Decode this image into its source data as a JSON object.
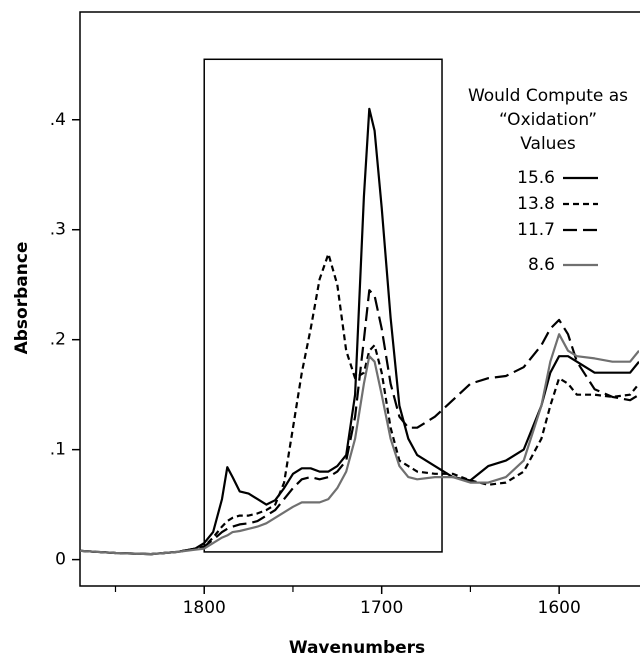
{
  "chart_data": {
    "type": "line",
    "x_label": "Wavenumbers",
    "y_label": "Absorbance",
    "xlim": [
      1870,
      1555
    ],
    "ylim": [
      -0.024,
      0.498
    ],
    "xticks": [
      1800,
      1700,
      1600
    ],
    "xminorticks": [
      1850,
      1750,
      1650
    ],
    "yticks": [
      0,
      {
        "value": 0.1,
        "label": ".1"
      },
      {
        "value": 0.2,
        "label": ".2"
      },
      {
        "value": 0.3,
        "label": ".3"
      },
      {
        "value": 0.4,
        "label": ".4"
      }
    ],
    "grid": false,
    "highlight_box": {
      "xlim": [
        1800,
        1666
      ],
      "ylim": [
        0.007,
        0.455
      ]
    },
    "legend_title": [
      "Would Compute as",
      "“Oxidation”",
      "Values"
    ],
    "legend_position": "upper right",
    "x": [
      1870,
      1850,
      1830,
      1815,
      1805,
      1800,
      1795,
      1790,
      1787,
      1784,
      1780,
      1775,
      1770,
      1765,
      1760,
      1755,
      1750,
      1745,
      1740,
      1735,
      1730,
      1725,
      1720,
      1715,
      1710,
      1707,
      1704,
      1700,
      1695,
      1690,
      1685,
      1680,
      1670,
      1660,
      1650,
      1640,
      1630,
      1620,
      1610,
      1605,
      1600,
      1595,
      1590,
      1580,
      1570,
      1560,
      1555
    ],
    "series": [
      {
        "name": "15.6",
        "color": "#000000",
        "dash": "solid",
        "values": [
          0.008,
          0.006,
          0.005,
          0.007,
          0.01,
          0.015,
          0.025,
          0.055,
          0.084,
          0.075,
          0.062,
          0.06,
          0.055,
          0.05,
          0.054,
          0.065,
          0.078,
          0.083,
          0.083,
          0.08,
          0.08,
          0.085,
          0.095,
          0.15,
          0.33,
          0.41,
          0.39,
          0.32,
          0.22,
          0.14,
          0.11,
          0.095,
          0.085,
          0.075,
          0.072,
          0.085,
          0.09,
          0.1,
          0.14,
          0.17,
          0.185,
          0.185,
          0.18,
          0.17,
          0.17,
          0.17,
          0.18
        ]
      },
      {
        "name": "13.8",
        "color": "#000000",
        "dash": "short-dash",
        "values": [
          0.008,
          0.006,
          0.005,
          0.007,
          0.01,
          0.012,
          0.02,
          0.03,
          0.035,
          0.038,
          0.04,
          0.04,
          0.042,
          0.045,
          0.05,
          0.07,
          0.12,
          0.17,
          0.21,
          0.255,
          0.278,
          0.25,
          0.19,
          0.165,
          0.17,
          0.19,
          0.195,
          0.17,
          0.12,
          0.09,
          0.085,
          0.08,
          0.078,
          0.078,
          0.072,
          0.068,
          0.07,
          0.08,
          0.11,
          0.14,
          0.165,
          0.16,
          0.15,
          0.15,
          0.148,
          0.15,
          0.16
        ]
      },
      {
        "name": "11.7",
        "color": "#000000",
        "dash": "long-dash",
        "values": [
          0.008,
          0.006,
          0.005,
          0.007,
          0.01,
          0.012,
          0.018,
          0.025,
          0.028,
          0.03,
          0.032,
          0.033,
          0.035,
          0.04,
          0.045,
          0.055,
          0.065,
          0.073,
          0.075,
          0.073,
          0.075,
          0.08,
          0.09,
          0.13,
          0.2,
          0.245,
          0.24,
          0.21,
          0.16,
          0.13,
          0.12,
          0.12,
          0.13,
          0.145,
          0.16,
          0.165,
          0.167,
          0.175,
          0.195,
          0.21,
          0.218,
          0.205,
          0.18,
          0.155,
          0.148,
          0.145,
          0.15
        ]
      },
      {
        "name": "8.6",
        "color": "#707070",
        "dash": "solid",
        "values": [
          0.008,
          0.006,
          0.005,
          0.007,
          0.009,
          0.01,
          0.015,
          0.02,
          0.022,
          0.025,
          0.026,
          0.028,
          0.03,
          0.033,
          0.038,
          0.043,
          0.048,
          0.052,
          0.052,
          0.052,
          0.055,
          0.065,
          0.08,
          0.11,
          0.16,
          0.185,
          0.18,
          0.15,
          0.11,
          0.085,
          0.075,
          0.073,
          0.075,
          0.075,
          0.07,
          0.07,
          0.075,
          0.09,
          0.14,
          0.18,
          0.205,
          0.19,
          0.185,
          0.183,
          0.18,
          0.18,
          0.19
        ]
      }
    ]
  }
}
